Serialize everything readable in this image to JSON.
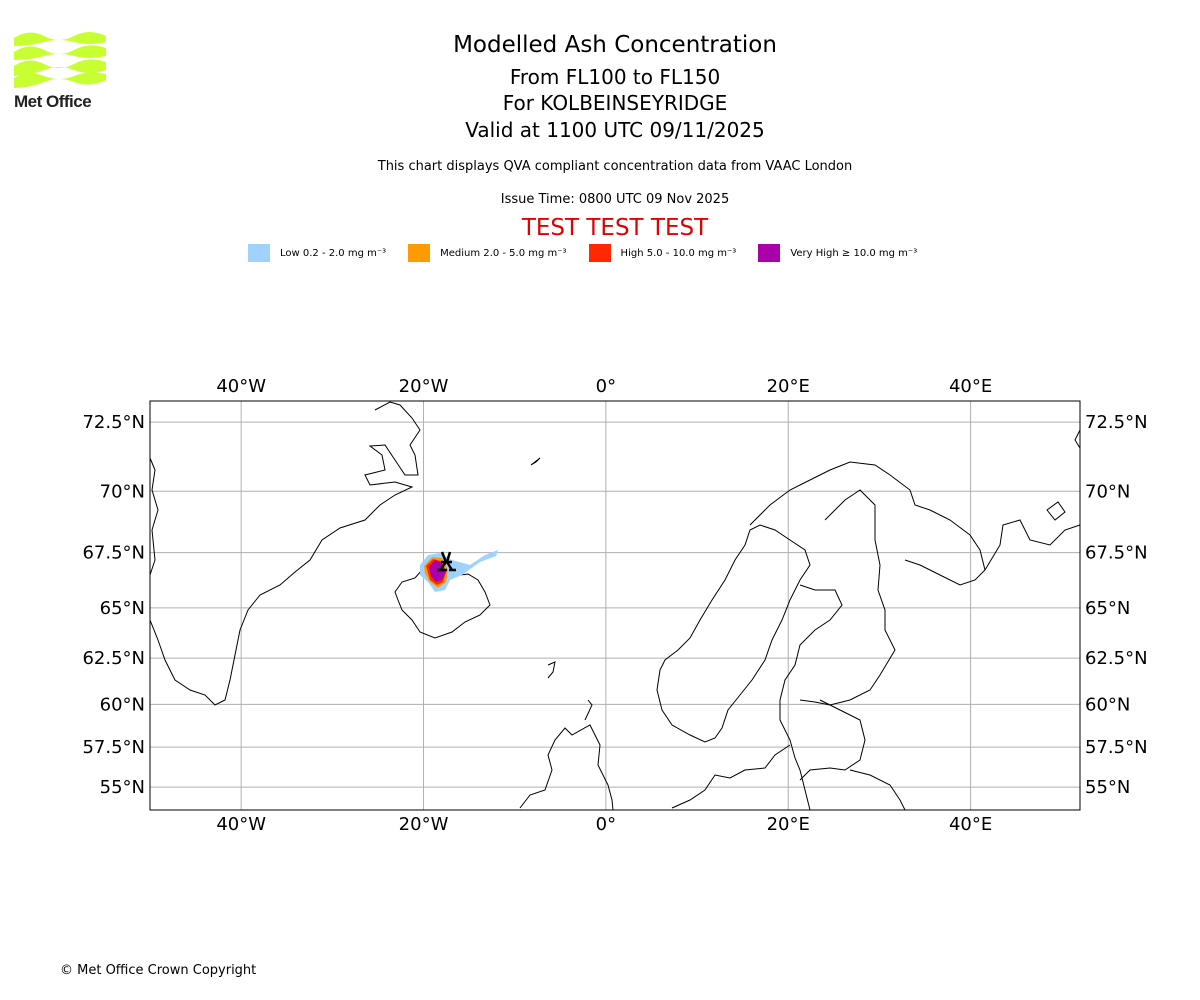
{
  "header": {
    "title": "Modelled Ash Concentration",
    "levels": "From FL100 to FL150",
    "location": "For KOLBEINSEYRIDGE",
    "valid": "Valid at 1100 UTC 09/11/2025",
    "description": "This chart displays QVA compliant concentration data from VAAC London",
    "issue_time": "Issue Time: 0800 UTC 09 Nov 2025",
    "test_banner": "TEST TEST TEST"
  },
  "logo": {
    "text": "Met Office",
    "color": "#c8ff32"
  },
  "legend": [
    {
      "label": "Low 0.2 - 2.0 mg m⁻³",
      "color": "#a0d2ff"
    },
    {
      "label": "Medium 2.0 - 5.0 mg m⁻³",
      "color": "#ff9b00"
    },
    {
      "label": "High 5.0 - 10.0 mg m⁻³",
      "color": "#ff2800"
    },
    {
      "label": "Very High ≥ 10.0 mg m⁻³",
      "color": "#aa00aa"
    }
  ],
  "map": {
    "lon_range": [
      -50,
      52
    ],
    "lat_range": [
      53.5,
      73.2
    ],
    "lon_ticks": [
      {
        "v": -40,
        "label": "40°W"
      },
      {
        "v": -20,
        "label": "20°W"
      },
      {
        "v": 0,
        "label": "0°"
      },
      {
        "v": 20,
        "label": "20°E"
      },
      {
        "v": 40,
        "label": "40°E"
      }
    ],
    "lat_ticks": [
      {
        "v": 72.5,
        "label": "72.5°N"
      },
      {
        "v": 70,
        "label": "70°N"
      },
      {
        "v": 67.5,
        "label": "67.5°N"
      },
      {
        "v": 65,
        "label": "65°N"
      },
      {
        "v": 62.5,
        "label": "62.5°N"
      },
      {
        "v": 60,
        "label": "60°N"
      },
      {
        "v": 57.5,
        "label": "57.5°N"
      },
      {
        "v": 55,
        "label": "55°N"
      }
    ],
    "volcano_marker": {
      "name": "KOLBEINSEYRIDGE",
      "lon": -18.8,
      "lat": 67.1
    }
  },
  "footer": {
    "copyright": "© Met Office Crown Copyright"
  }
}
